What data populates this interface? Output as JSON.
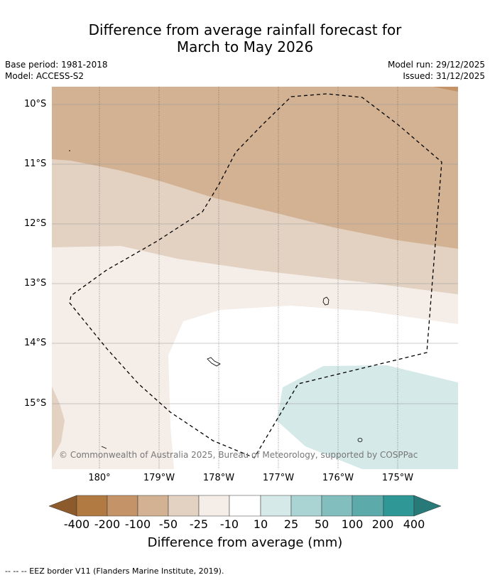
{
  "header": {
    "title_line1": "Difference from average rainfall forecast for",
    "title_line2": "March to May 2026",
    "base_period": "Base period: 1981-2018",
    "model": "Model: ACCESS-S2",
    "model_run": "Model run: 29/12/2025",
    "issued": "Issued: 31/12/2025"
  },
  "map": {
    "lat_labels": [
      "10°S",
      "11°S",
      "12°S",
      "13°S",
      "14°S",
      "15°S"
    ],
    "lon_labels": [
      "180°",
      "179°W",
      "178°W",
      "177°W",
      "176°W",
      "175°W"
    ],
    "copyright": "© Commonwealth of Australia 2025, Bureau of Meteorology, supported by COSPPac"
  },
  "legend": {
    "ticks": [
      "-400",
      "-200",
      "-100",
      "-50",
      "-25",
      "-10",
      "10",
      "25",
      "50",
      "100",
      "200",
      "400"
    ],
    "colors": [
      "#8d5a2b",
      "#b27a43",
      "#c49468",
      "#d2b293",
      "#e3d1c1",
      "#f4ede8",
      "#ffffff",
      "#d5e9e8",
      "#a9d4d3",
      "#82bebe",
      "#5caaaa",
      "#2f9795",
      "#287a78"
    ],
    "title": "Difference from average (mm)"
  },
  "footnote": "--  --  -- EEZ border V11 (Flanders Marine Institute, 2019)."
}
